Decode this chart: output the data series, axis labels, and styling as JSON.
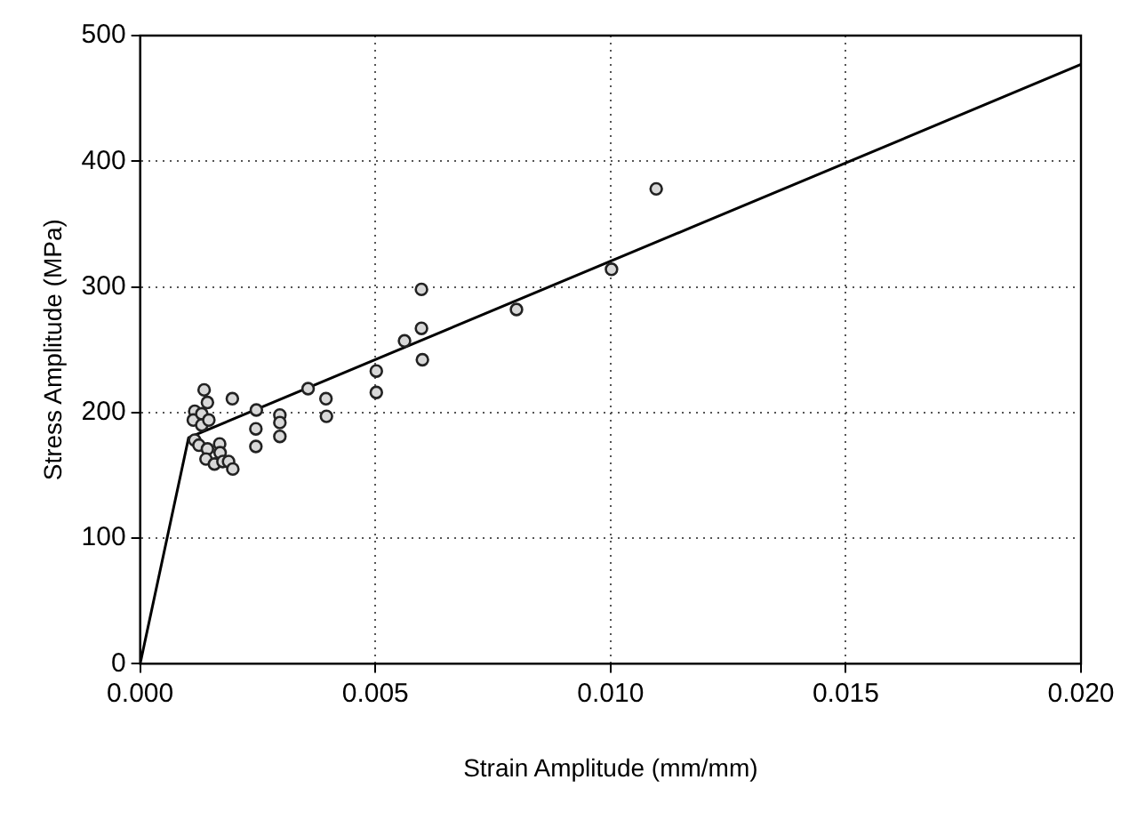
{
  "chart_data": {
    "type": "scatter",
    "xlabel": "Strain Amplitude (mm/mm)",
    "ylabel": "Stress Amplitude (MPa)",
    "xlim": [
      0,
      0.02
    ],
    "xticks": [
      {
        "value": 0,
        "label": "0.000"
      },
      {
        "value": 0.005,
        "label": "0.005"
      },
      {
        "value": 0.01,
        "label": "0.010"
      },
      {
        "value": 0.015,
        "label": "0.015"
      },
      {
        "value": 0.02,
        "label": "0.020"
      }
    ],
    "ylim": [
      0,
      500
    ],
    "yticks": [
      0,
      100,
      200,
      300,
      400,
      500
    ],
    "grid": true,
    "legend": false,
    "series": [
      {
        "type": "scatter",
        "color": "#222222",
        "marker": "circle",
        "x": [
          0.00136,
          0.00116,
          0.00113,
          0.00131,
          0.00143,
          0.00131,
          0.00146,
          0.00116,
          0.00125,
          0.00143,
          0.0014,
          0.00158,
          0.00169,
          0.0017,
          0.00176,
          0.00188,
          0.00197,
          0.00196,
          0.00247,
          0.00246,
          0.00246,
          0.00297,
          0.00297,
          0.00297,
          0.00357,
          0.00395,
          0.00396,
          0.00502,
          0.00502,
          0.00562,
          0.00598,
          0.00598,
          0.006,
          0.008,
          0.01002,
          0.01097
        ],
        "values": [
          218,
          201,
          194,
          199,
          208,
          190,
          194,
          178,
          174,
          171,
          163,
          159,
          175,
          168,
          161,
          161,
          155,
          211,
          202,
          187,
          173,
          198,
          192,
          181,
          219,
          211,
          197,
          233,
          216,
          257,
          267,
          298,
          242,
          282,
          314,
          378
        ]
      },
      {
        "type": "line",
        "color": "#000000",
        "marker": "none",
        "line_style": "solid",
        "x": [
          0,
          0.00103,
          0.02
        ],
        "values": [
          0,
          180,
          477
        ]
      }
    ]
  }
}
